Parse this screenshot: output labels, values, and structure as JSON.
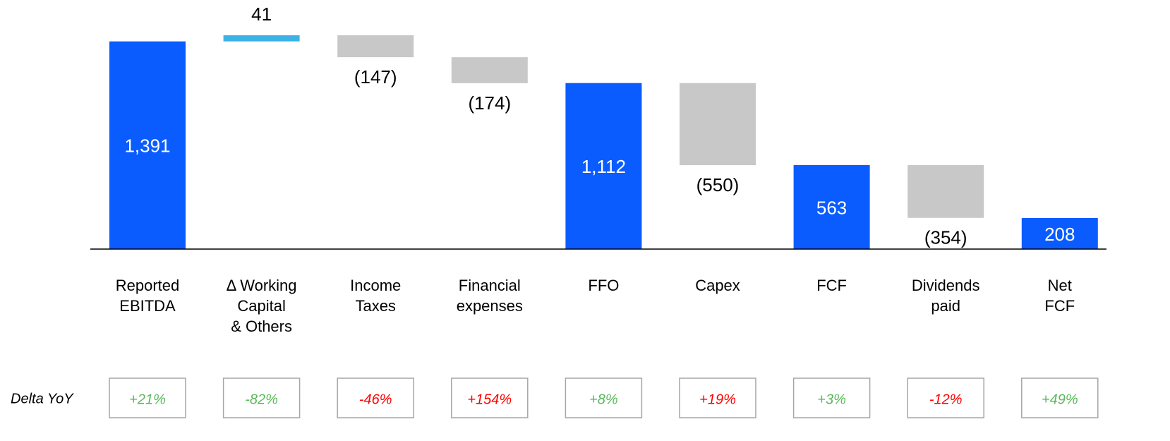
{
  "chart_data": {
    "type": "waterfall",
    "categories": [
      [
        "Reported",
        "EBITDA"
      ],
      [
        "Δ Working",
        "Capital",
        "& Others"
      ],
      [
        "Income",
        "Taxes"
      ],
      [
        "Financial",
        "expenses"
      ],
      [
        "FFO"
      ],
      [
        "Capex"
      ],
      [
        "FCF"
      ],
      [
        "Dividends",
        "paid"
      ],
      [
        "Net",
        "FCF"
      ]
    ],
    "values": [
      1391,
      41,
      -147,
      -174,
      1112,
      -550,
      563,
      -354,
      208
    ],
    "value_labels": [
      "1,391",
      "41",
      "(147)",
      "(174)",
      "1,112",
      "(550)",
      "563",
      "(354)",
      "208"
    ],
    "kinds": [
      "total",
      "delta",
      "delta",
      "delta",
      "total",
      "delta",
      "total",
      "delta",
      "total"
    ],
    "colors": {
      "total": "#0a5cff",
      "increase": "#3cb3e8",
      "decrease": "#c8c8c8"
    },
    "yoy": {
      "label": "Delta YoY",
      "values": [
        21,
        -82,
        -46,
        154,
        8,
        19,
        3,
        -12,
        49
      ],
      "value_labels": [
        "+21%",
        "-82%",
        "-46%",
        "+154%",
        "+8%",
        "+19%",
        "+3%",
        "-12%",
        "+49%"
      ],
      "colors": [
        "#5cb85c",
        "#5cb85c",
        "#ff0000",
        "#ff0000",
        "#5cb85c",
        "#ff0000",
        "#5cb85c",
        "#ff0000",
        "#5cb85c"
      ]
    }
  }
}
